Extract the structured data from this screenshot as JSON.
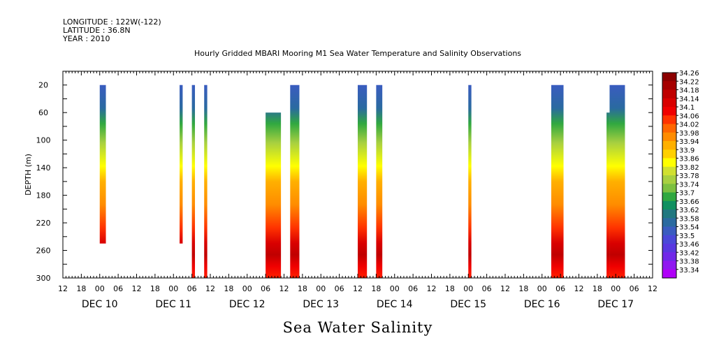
{
  "header": {
    "longitude": "LONGITUDE : 122W(-122)",
    "latitude": "LATITUDE : 36.8N",
    "year": "YEAR : 2010"
  },
  "chart_data": {
    "type": "heatmap",
    "title": "Hourly Gridded MBARI Mooring M1 Sea Water Temperature and Salinity Observations",
    "xlabel": "Sea Water Salinity",
    "ylabel": "DEPTH (m)",
    "xlim_hours": [
      -12,
      180
    ],
    "x_hour_ticks": [
      "12",
      "18",
      "00",
      "06",
      "12",
      "18",
      "00",
      "06",
      "12",
      "18",
      "00",
      "06",
      "12",
      "18",
      "00",
      "06",
      "12",
      "18",
      "00",
      "06",
      "12",
      "18",
      "00",
      "06",
      "12",
      "18",
      "00",
      "06",
      "12",
      "18",
      "00",
      "06",
      "12"
    ],
    "x_date_labels": [
      "DEC 10",
      "DEC 11",
      "DEC 12",
      "DEC 13",
      "DEC 14",
      "DEC 15",
      "DEC 16",
      "DEC 17"
    ],
    "ylim": [
      300,
      0
    ],
    "y_ticks": [
      20,
      60,
      100,
      140,
      180,
      220,
      260,
      300
    ],
    "colorbar": {
      "levels": [
        "34.26",
        "34.22",
        "34.18",
        "34.14",
        "34.1",
        "34.06",
        "34.02",
        "33.98",
        "33.94",
        "33.9",
        "33.86",
        "33.82",
        "33.78",
        "33.74",
        "33.7",
        "33.66",
        "33.62",
        "33.58",
        "33.54",
        "33.5",
        "33.46",
        "33.42",
        "33.38",
        "33.34"
      ],
      "colors": [
        "#8c0000",
        "#a60000",
        "#c00000",
        "#d90000",
        "#f00000",
        "#ff3300",
        "#ff6600",
        "#ff8c00",
        "#ffb000",
        "#ffd000",
        "#ffff00",
        "#d0e030",
        "#a8d040",
        "#7cc040",
        "#30a840",
        "#109060",
        "#207880",
        "#2a6aa0",
        "#3a5cc0",
        "#4a48d8",
        "#5838e0",
        "#7028e8",
        "#9018f0",
        "#b000f8"
      ]
    },
    "profiles": [
      {
        "x_start": 0,
        "x_end": 2,
        "top": 20,
        "bottom": 250
      },
      {
        "x_start": 26,
        "x_end": 27,
        "top": 20,
        "bottom": 250
      },
      {
        "x_start": 30,
        "x_end": 31,
        "top": 20,
        "bottom": 300
      },
      {
        "x_start": 34,
        "x_end": 35,
        "top": 20,
        "bottom": 300
      },
      {
        "x_start": 54,
        "x_end": 59,
        "top": 60,
        "bottom": 300
      },
      {
        "x_start": 62,
        "x_end": 65,
        "top": 20,
        "bottom": 300
      },
      {
        "x_start": 84,
        "x_end": 87,
        "top": 20,
        "bottom": 300
      },
      {
        "x_start": 90,
        "x_end": 92,
        "top": 20,
        "bottom": 300
      },
      {
        "x_start": 120,
        "x_end": 121,
        "top": 20,
        "bottom": 300
      },
      {
        "x_start": 147,
        "x_end": 151,
        "top": 20,
        "bottom": 300
      },
      {
        "x_start": 165,
        "x_end": 166,
        "top": 60,
        "bottom": 300
      },
      {
        "x_start": 166,
        "x_end": 171,
        "top": 20,
        "bottom": 300
      }
    ]
  }
}
